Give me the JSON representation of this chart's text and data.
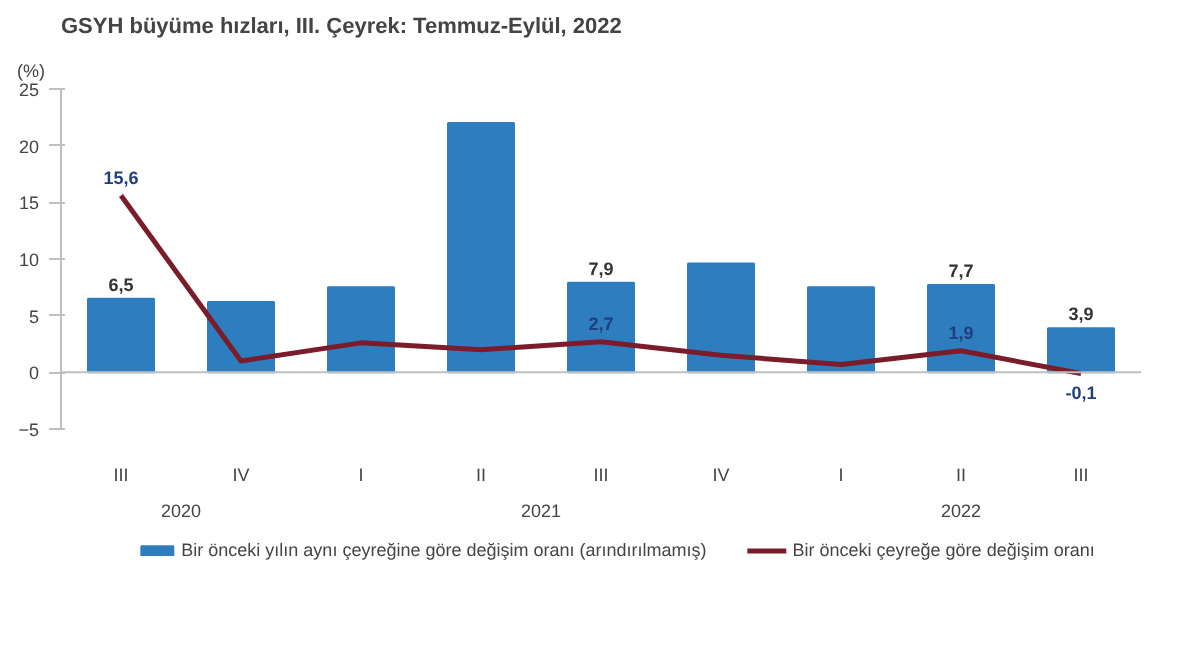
{
  "chart_data": {
    "type": "bar",
    "title": "GSYH büyüme hızları, III. Çeyrek: Temmuz-Eylül, 2022",
    "ylabel": "(%)",
    "categories": [
      "III",
      "IV",
      "I",
      "II",
      "III",
      "IV",
      "I",
      "II",
      "III"
    ],
    "series": [
      {
        "name": "Bir önceki yılın aynı çeyreğine göre değişim oranı (arındırılmamış)",
        "type": "bar",
        "color": "#2e7ebf",
        "values": [
          6.5,
          6.2,
          7.5,
          22.0,
          7.9,
          9.6,
          7.5,
          7.7,
          3.9
        ],
        "value_labels": [
          "6,5",
          null,
          null,
          null,
          "7,9",
          null,
          null,
          "7,7",
          "3,9"
        ]
      },
      {
        "name": "Bir önceki çeyreğe göre değişim oranı",
        "type": "line",
        "color": "#7b1c2a",
        "values": [
          15.6,
          1.0,
          2.6,
          2.0,
          2.7,
          1.5,
          0.7,
          1.9,
          -0.1
        ],
        "value_labels": [
          "15,6",
          null,
          null,
          null,
          "2,7",
          null,
          null,
          "1,9",
          "-0,1"
        ]
      }
    ],
    "annotations": [
      "2020",
      "2021",
      "2022"
    ],
    "ylim": [
      -5,
      25
    ],
    "yticks": [
      -5,
      0,
      5,
      10,
      15,
      20,
      25
    ],
    "ref_lines": [
      {
        "axis": "y",
        "value": 0,
        "color": "#bfbfbf"
      }
    ],
    "grid": false,
    "legend": "bottom",
    "marker": "none",
    "line_style": "solid"
  }
}
